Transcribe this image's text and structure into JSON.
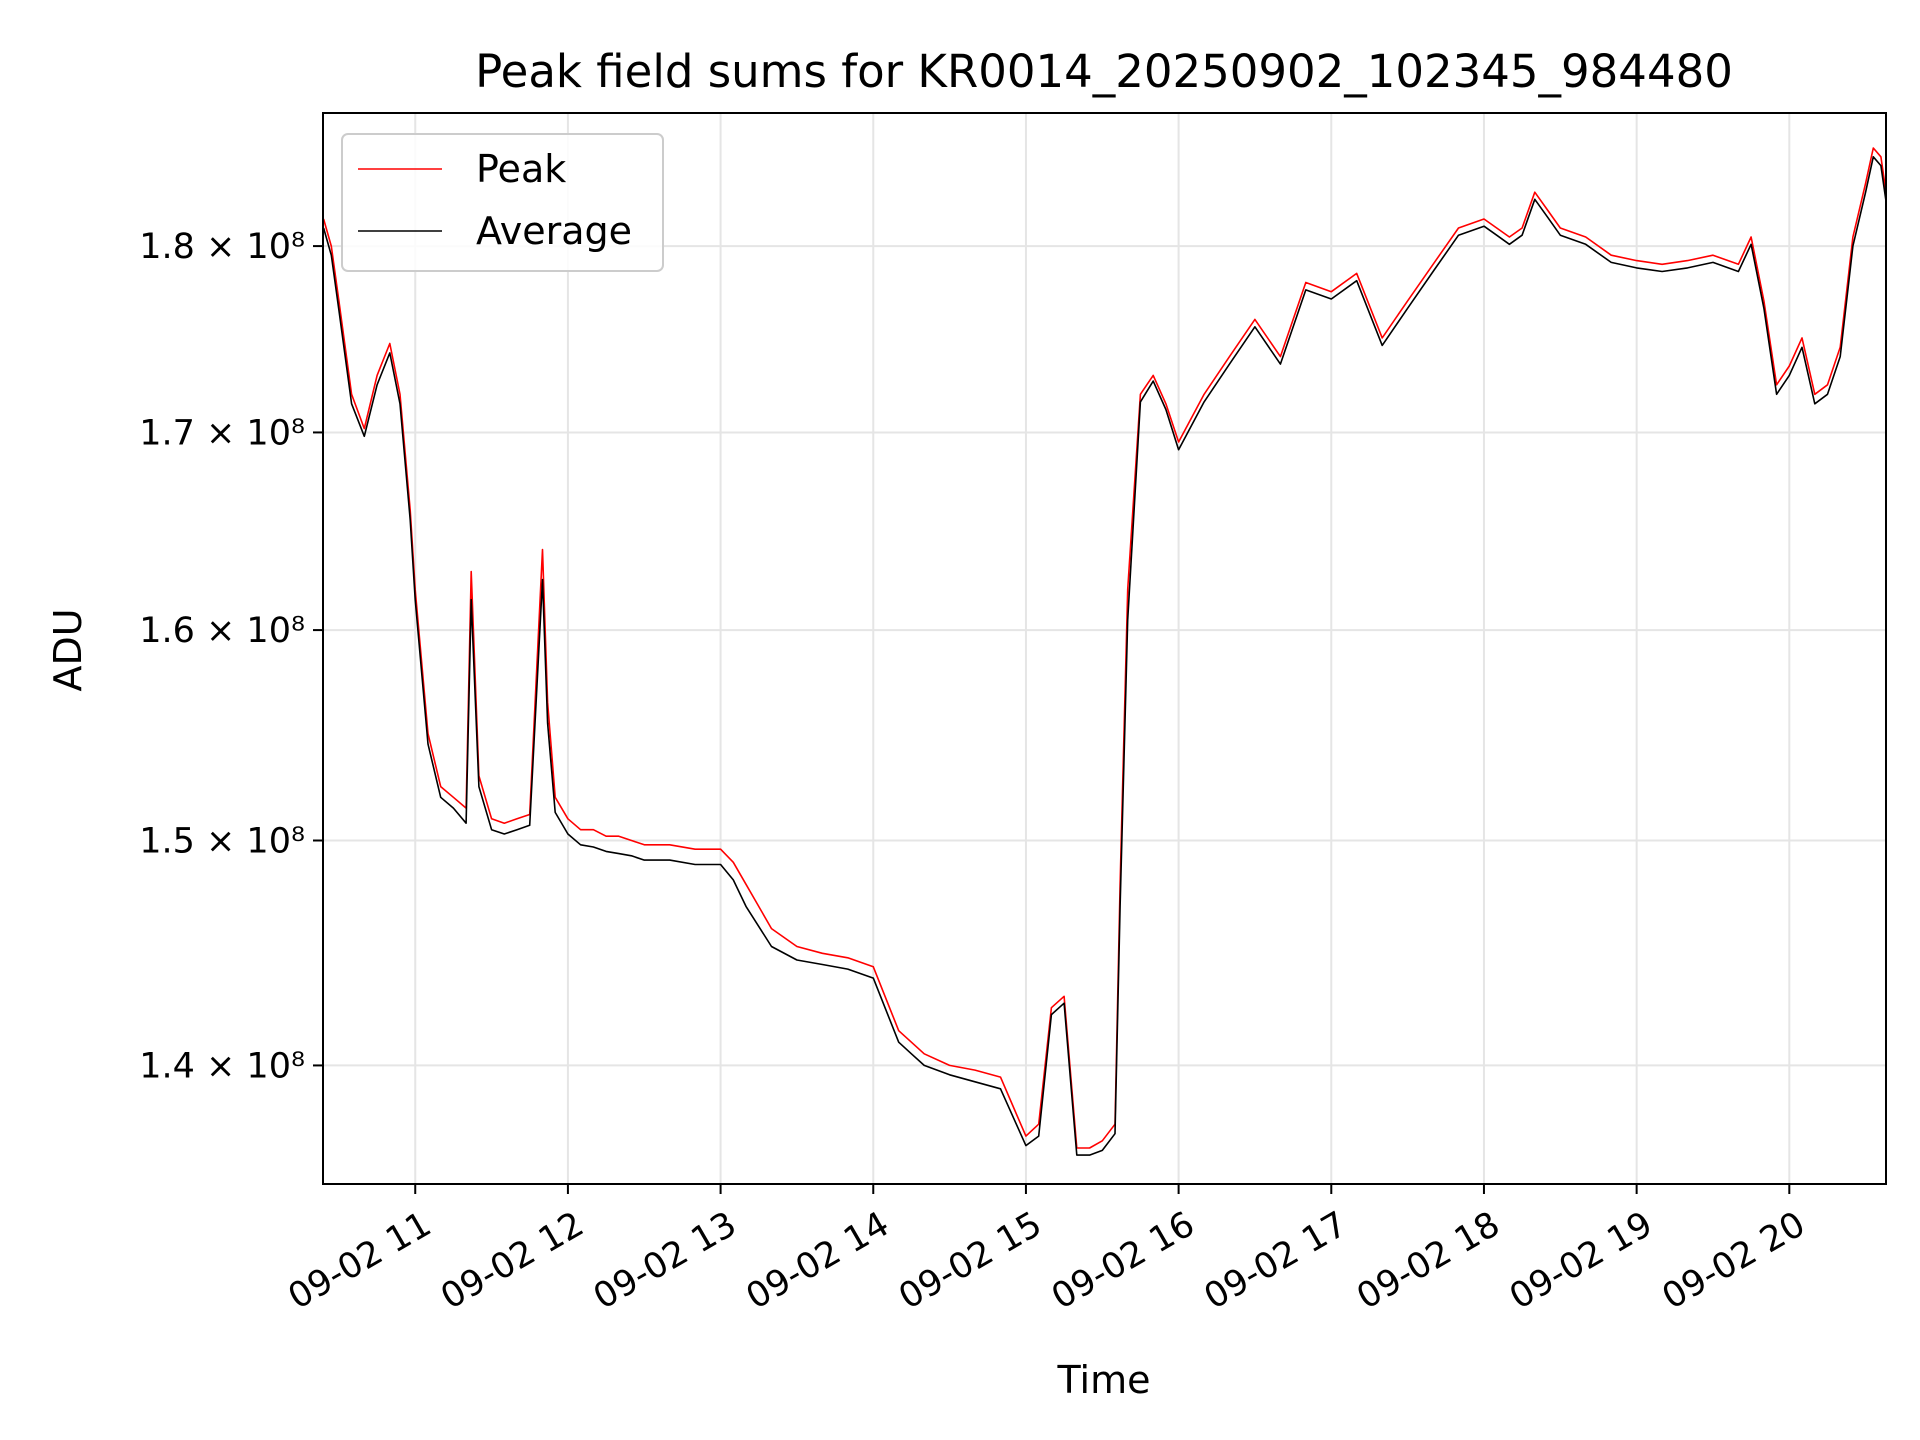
{
  "chart_data": {
    "type": "line",
    "title": "Peak field sums for KR0014_20250902_102345_984480",
    "xlabel": "Time",
    "ylabel": "ADU",
    "yscale": "log",
    "grid": true,
    "legend": {
      "placement": "top-left"
    },
    "xlim": [
      "2025-09-02 10:23:45",
      "2025-09-02 20:38:00"
    ],
    "ylim": [
      135000000,
      187500000
    ],
    "x_ticks": [
      {
        "value": "2025-09-02 11:00",
        "label": "09-02 11"
      },
      {
        "value": "2025-09-02 12:00",
        "label": "09-02 12"
      },
      {
        "value": "2025-09-02 13:00",
        "label": "09-02 13"
      },
      {
        "value": "2025-09-02 14:00",
        "label": "09-02 14"
      },
      {
        "value": "2025-09-02 15:00",
        "label": "09-02 15"
      },
      {
        "value": "2025-09-02 16:00",
        "label": "09-02 16"
      },
      {
        "value": "2025-09-02 17:00",
        "label": "09-02 17"
      },
      {
        "value": "2025-09-02 18:00",
        "label": "09-02 18"
      },
      {
        "value": "2025-09-02 19:00",
        "label": "09-02 19"
      },
      {
        "value": "2025-09-02 20:00",
        "label": "09-02 20"
      }
    ],
    "y_ticks": [
      {
        "value": 140000000,
        "label": "1.4 × 10⁸"
      },
      {
        "value": 150000000,
        "label": "1.5 × 10⁸"
      },
      {
        "value": 160000000,
        "label": "1.6 × 10⁸"
      },
      {
        "value": 170000000,
        "label": "1.7 × 10⁸"
      },
      {
        "value": 180000000,
        "label": "1.8 × 10⁸"
      }
    ],
    "series": [
      {
        "name": "Peak",
        "color": "#ff0000",
        "x": [
          "10:24",
          "10:27",
          "10:30",
          "10:35",
          "10:40",
          "10:45",
          "10:50",
          "10:54",
          "10:58",
          "11:00",
          "11:05",
          "11:10",
          "11:15",
          "11:20",
          "11:22",
          "11:25",
          "11:30",
          "11:35",
          "11:40",
          "11:45",
          "11:50",
          "11:52",
          "11:55",
          "12:00",
          "12:05",
          "12:10",
          "12:15",
          "12:20",
          "12:25",
          "12:30",
          "12:40",
          "12:50",
          "13:00",
          "13:05",
          "13:10",
          "13:20",
          "13:30",
          "13:40",
          "13:50",
          "14:00",
          "14:10",
          "14:15",
          "14:20",
          "14:30",
          "14:40",
          "14:50",
          "15:00",
          "15:05",
          "15:10",
          "15:15",
          "15:20",
          "15:25",
          "15:30",
          "15:35",
          "15:37",
          "15:40",
          "15:45",
          "15:50",
          "15:55",
          "16:00",
          "16:10",
          "16:20",
          "16:30",
          "16:40",
          "16:50",
          "17:00",
          "17:10",
          "17:20",
          "17:30",
          "17:40",
          "17:50",
          "18:00",
          "18:05",
          "18:10",
          "18:15",
          "18:20",
          "18:25",
          "18:30",
          "18:40",
          "18:50",
          "19:00",
          "19:10",
          "19:20",
          "19:30",
          "19:40",
          "19:45",
          "19:50",
          "19:55",
          "20:00",
          "20:05",
          "20:10",
          "20:15",
          "20:20",
          "20:25",
          "20:30",
          "20:33",
          "20:36",
          "20:38"
        ],
        "y": [
          181500000,
          180000000,
          177000000,
          172000000,
          170200000,
          173000000,
          174700000,
          172000000,
          166000000,
          162000000,
          155000000,
          152500000,
          152000000,
          151500000,
          162900000,
          153000000,
          151000000,
          150800000,
          151000000,
          151200000,
          164000000,
          156500000,
          152000000,
          151000000,
          150500000,
          150500000,
          150200000,
          150200000,
          150000000,
          149800000,
          149800000,
          149600000,
          149600000,
          149000000,
          148000000,
          146000000,
          145200000,
          144900000,
          144700000,
          144300000,
          141500000,
          141000000,
          140500000,
          140000000,
          139800000,
          139500000,
          137000000,
          137500000,
          142500000,
          143000000,
          136500000,
          136500000,
          136800000,
          137500000,
          148000000,
          162000000,
          172000000,
          173000000,
          171500000,
          169500000,
          172000000,
          174000000,
          176000000,
          174000000,
          178000000,
          177500000,
          178500000,
          175000000,
          177000000,
          179000000,
          181000000,
          181500000,
          181000000,
          180500000,
          181000000,
          183000000,
          182000000,
          181000000,
          180500000,
          179500000,
          179200000,
          179000000,
          179200000,
          179500000,
          179000000,
          180500000,
          177000000,
          172500000,
          173500000,
          175000000,
          172000000,
          172500000,
          174500000,
          180500000,
          183500000,
          185500000,
          185000000,
          183000000
        ]
      },
      {
        "name": "Average",
        "color": "#000000",
        "x": [
          "10:24",
          "10:27",
          "10:30",
          "10:35",
          "10:40",
          "10:45",
          "10:50",
          "10:54",
          "10:58",
          "11:00",
          "11:05",
          "11:10",
          "11:15",
          "11:20",
          "11:22",
          "11:25",
          "11:30",
          "11:35",
          "11:40",
          "11:45",
          "11:50",
          "11:52",
          "11:55",
          "12:00",
          "12:05",
          "12:10",
          "12:15",
          "12:20",
          "12:25",
          "12:30",
          "12:40",
          "12:50",
          "13:00",
          "13:05",
          "13:10",
          "13:20",
          "13:30",
          "13:40",
          "13:50",
          "14:00",
          "14:10",
          "14:15",
          "14:20",
          "14:30",
          "14:40",
          "14:50",
          "15:00",
          "15:05",
          "15:10",
          "15:15",
          "15:20",
          "15:25",
          "15:30",
          "15:35",
          "15:37",
          "15:40",
          "15:45",
          "15:50",
          "15:55",
          "16:00",
          "16:10",
          "16:20",
          "16:30",
          "16:40",
          "16:50",
          "17:00",
          "17:10",
          "17:20",
          "17:30",
          "17:40",
          "17:50",
          "18:00",
          "18:05",
          "18:10",
          "18:15",
          "18:20",
          "18:25",
          "18:30",
          "18:40",
          "18:50",
          "19:00",
          "19:10",
          "19:20",
          "19:30",
          "19:40",
          "19:45",
          "19:50",
          "19:55",
          "20:00",
          "20:05",
          "20:10",
          "20:15",
          "20:20",
          "20:25",
          "20:30",
          "20:33",
          "20:36",
          "20:38"
        ],
        "y": [
          181000000,
          179500000,
          176500000,
          171500000,
          169800000,
          172500000,
          174200000,
          171500000,
          165500000,
          161500000,
          154500000,
          152000000,
          151500000,
          150800000,
          161500000,
          152500000,
          150500000,
          150300000,
          150500000,
          150700000,
          162500000,
          155500000,
          151300000,
          150300000,
          149800000,
          149700000,
          149500000,
          149400000,
          149300000,
          149100000,
          149100000,
          148900000,
          148900000,
          148200000,
          147000000,
          145200000,
          144600000,
          144400000,
          144200000,
          143800000,
          141000000,
          140500000,
          140000000,
          139600000,
          139300000,
          139000000,
          136600000,
          137000000,
          142200000,
          142700000,
          136200000,
          136200000,
          136400000,
          137100000,
          147000000,
          160500000,
          171600000,
          172700000,
          171200000,
          169100000,
          171600000,
          173600000,
          175600000,
          173600000,
          177600000,
          177100000,
          178100000,
          174600000,
          176600000,
          178600000,
          180600000,
          181100000,
          180600000,
          180100000,
          180600000,
          182600000,
          181600000,
          180600000,
          180100000,
          179100000,
          178800000,
          178600000,
          178800000,
          179100000,
          178600000,
          180100000,
          176600000,
          172000000,
          173000000,
          174500000,
          171500000,
          172000000,
          174000000,
          180000000,
          183000000,
          185000000,
          184500000,
          182500000
        ]
      }
    ]
  }
}
